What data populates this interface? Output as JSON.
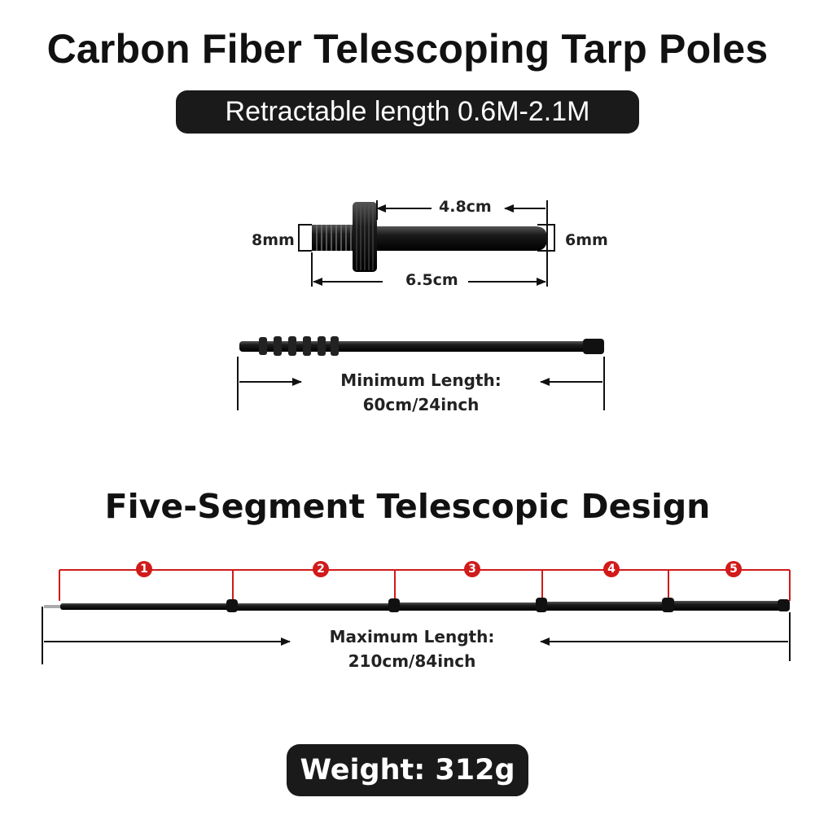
{
  "title": "Carbon Fiber Telescoping Tarp Poles",
  "subtitle": "Retractable length 0.6M-2.1M",
  "tip_dimensions": {
    "thread_diameter": "8mm",
    "shaft_length": "4.8cm",
    "tip_diameter": "6mm",
    "total_length": "6.5cm"
  },
  "minimum_length": {
    "label": "Minimum Length:",
    "value": "60cm/24inch"
  },
  "design_heading": "Five-Segment Telescopic Design",
  "segments": [
    {
      "number": "1"
    },
    {
      "number": "2"
    },
    {
      "number": "3"
    },
    {
      "number": "4"
    },
    {
      "number": "5"
    }
  ],
  "maximum_length": {
    "label": "Maximum Length:",
    "value": "210cm/84inch"
  },
  "weight": "Weight: 312g",
  "colors": {
    "accent_red": "#d11a1a",
    "pill_bg": "#1a1a1a",
    "pole_black": "#111111"
  }
}
